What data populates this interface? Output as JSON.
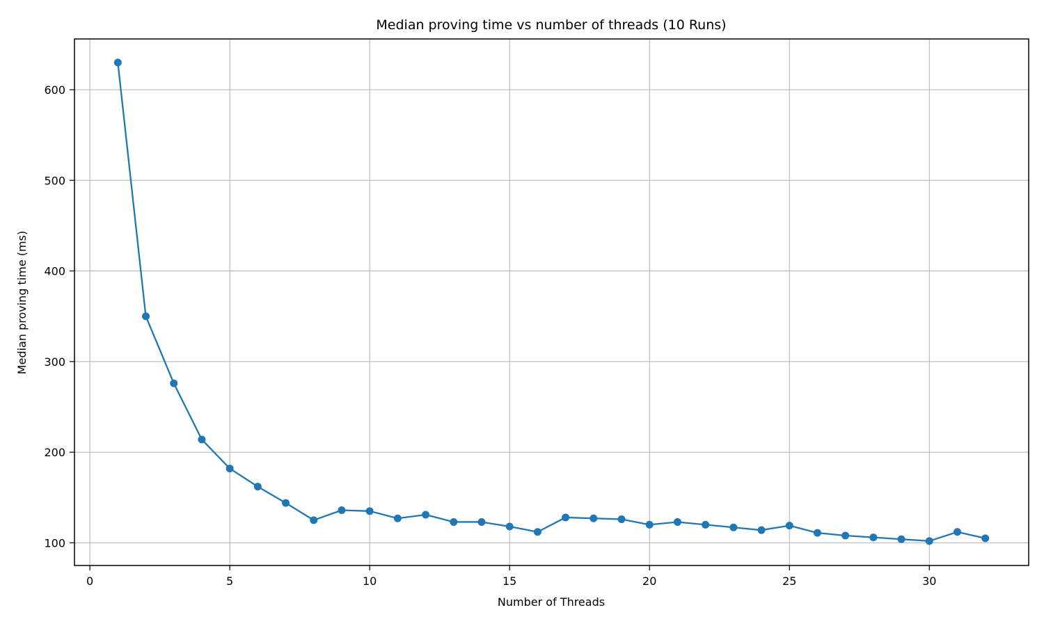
{
  "chart_data": {
    "type": "line",
    "title": "Median proving time vs number of threads (10 Runs)",
    "xlabel": "Number of Threads",
    "ylabel": "Median proving time (ms)",
    "xlim": [
      -0.55,
      33.55
    ],
    "ylim": [
      75,
      656
    ],
    "xticks": [
      0,
      5,
      10,
      15,
      20,
      25,
      30
    ],
    "yticks": [
      100,
      200,
      300,
      400,
      500,
      600
    ],
    "grid": true,
    "legend": "none",
    "series": [
      {
        "color": "#1f77b4",
        "marker": "circle",
        "x": [
          1,
          2,
          3,
          4,
          5,
          6,
          7,
          8,
          9,
          10,
          11,
          12,
          13,
          14,
          15,
          16,
          17,
          18,
          19,
          20,
          21,
          22,
          23,
          24,
          25,
          26,
          27,
          28,
          29,
          30,
          31,
          32
        ],
        "y": [
          630,
          350,
          276,
          214,
          182,
          162,
          144,
          125,
          136,
          135,
          127,
          131,
          123,
          123,
          118,
          112,
          128,
          127,
          126,
          120,
          123,
          120,
          117,
          114,
          119,
          111,
          108,
          106,
          104,
          102,
          112,
          105
        ]
      }
    ]
  }
}
